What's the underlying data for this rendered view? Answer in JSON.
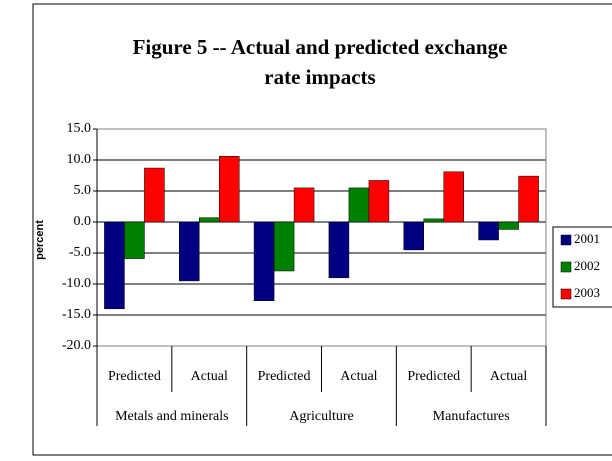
{
  "chart_data": {
    "type": "bar",
    "title": "Figure 5 -- Actual and predicted exchange rate impacts",
    "y_label": "percent",
    "categories": [
      "Predicted",
      "Actual",
      "Predicted",
      "Actual",
      "Predicted",
      "Actual"
    ],
    "category_groups": [
      "Metals and minerals",
      "Agriculture",
      "Manufactures"
    ],
    "series": [
      {
        "name": "2001",
        "color": "#000080",
        "values": [
          -14.0,
          -9.5,
          -12.7,
          -9.0,
          -4.5,
          -2.9
        ]
      },
      {
        "name": "2002",
        "color": "#008000",
        "values": [
          -5.9,
          0.7,
          -7.9,
          5.5,
          0.5,
          -1.2
        ]
      },
      {
        "name": "2003",
        "color": "#ff0000",
        "values": [
          8.7,
          10.6,
          5.5,
          6.7,
          8.1,
          7.4
        ]
      }
    ],
    "ylim": [
      -20,
      15
    ],
    "yticks": [
      {
        "value": -20,
        "label": "-20.0"
      },
      {
        "value": -15,
        "label": "-15.0"
      },
      {
        "value": -10,
        "label": "-10.0"
      },
      {
        "value": -5,
        "label": "-5.0"
      },
      {
        "value": 0,
        "label": "0.0"
      },
      {
        "value": 5,
        "label": "5.0"
      },
      {
        "value": 10,
        "label": "10.0"
      },
      {
        "value": 15,
        "label": "15.0"
      }
    ],
    "grid": true,
    "legend": "right"
  }
}
